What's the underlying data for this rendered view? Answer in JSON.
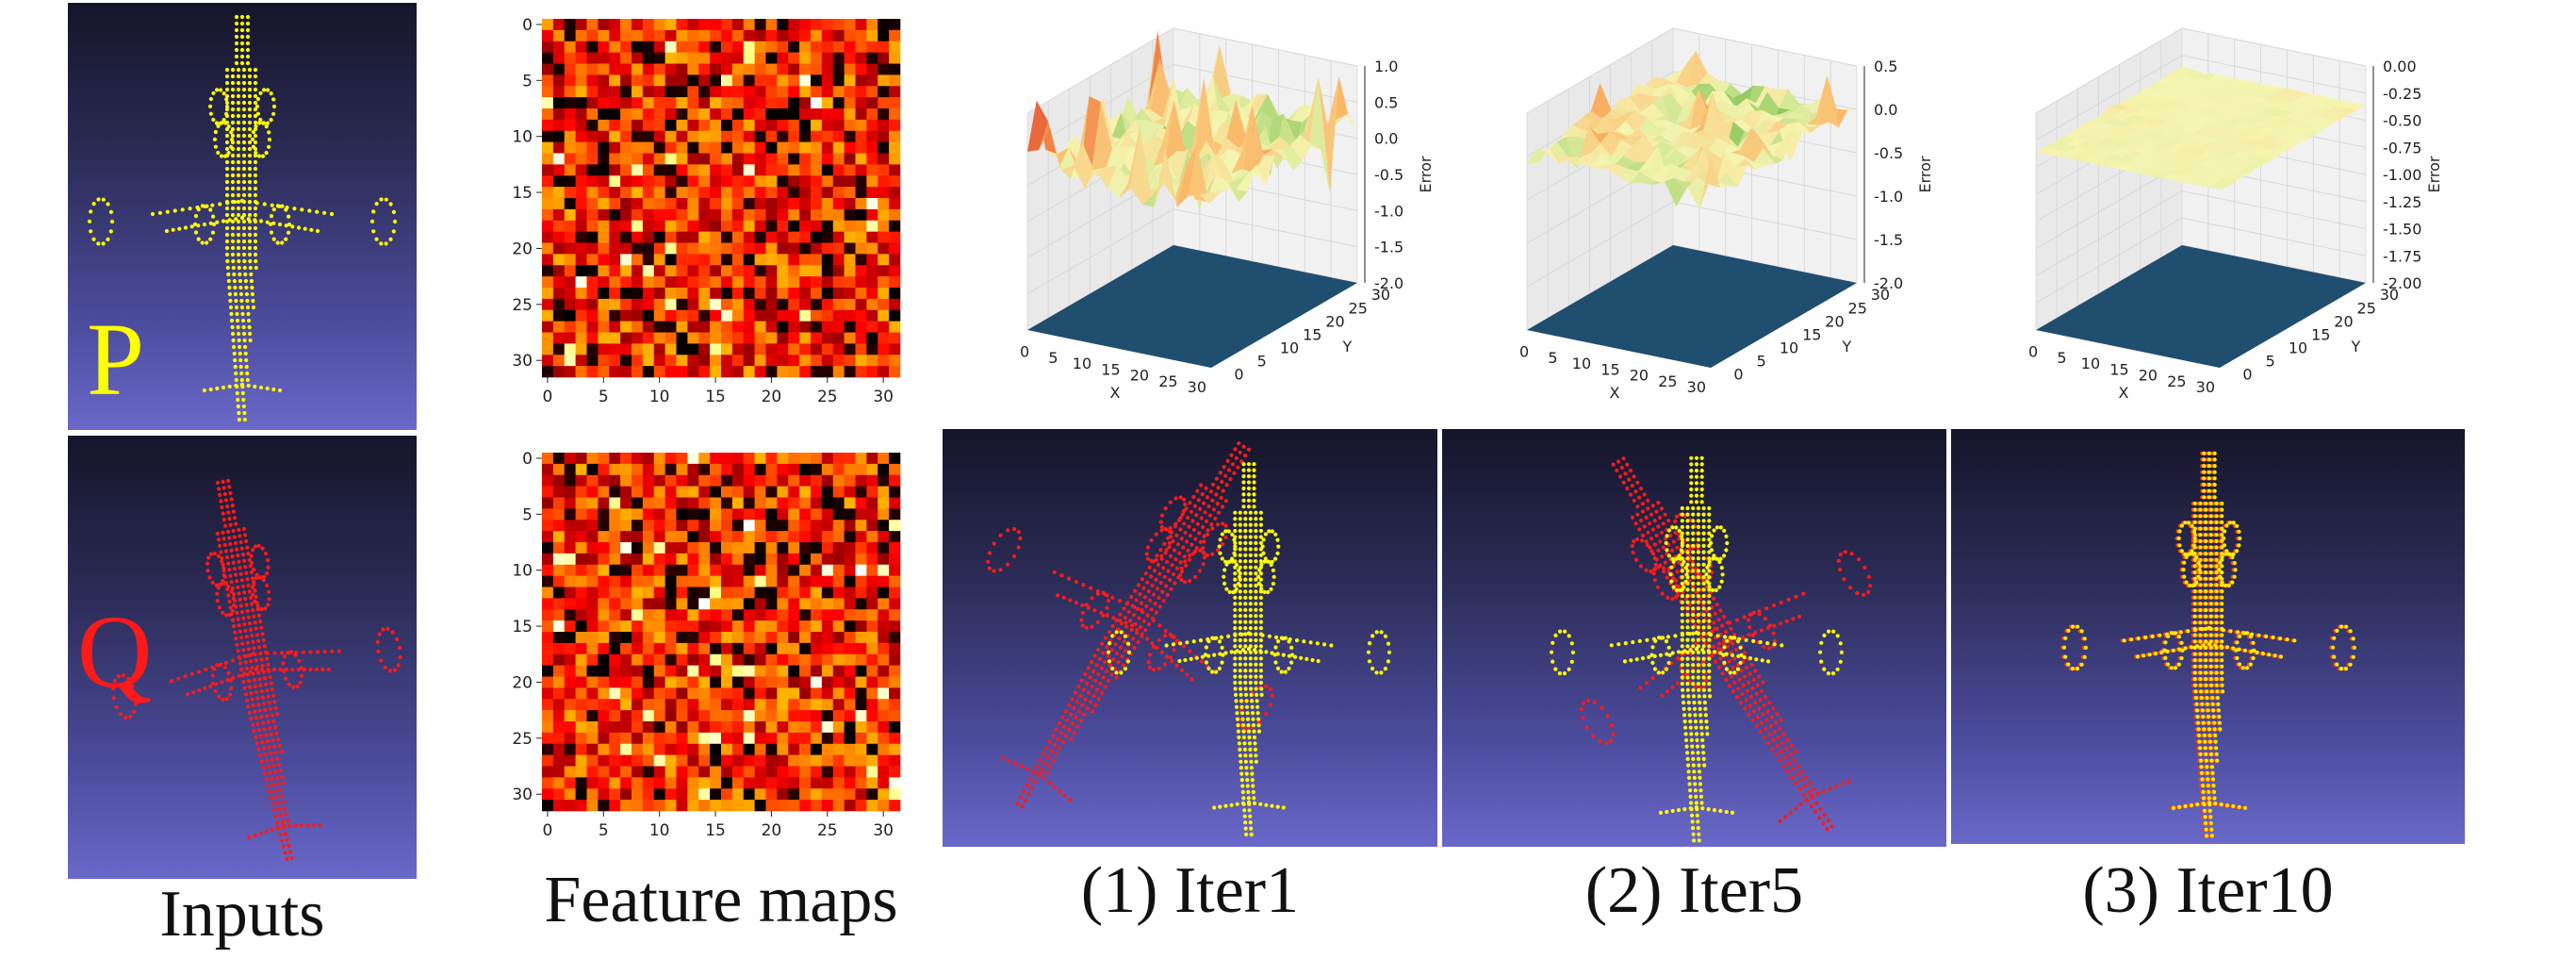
{
  "labels": {
    "p": "P",
    "q": "Q"
  },
  "captions": {
    "inputs": "Inputs",
    "feature_maps": "Feature maps",
    "iter1": "(1) Iter1",
    "iter5": "(2) Iter5",
    "iter10": "(3) Iter10"
  },
  "heatmap_ticks": [
    "0",
    "5",
    "10",
    "15",
    "20",
    "25",
    "30"
  ],
  "plot_axes": {
    "x_label": "X",
    "y_label": "Y",
    "z_label": "Error",
    "xy_ticks": [
      "0",
      "5",
      "10",
      "15",
      "20",
      "25",
      "30"
    ]
  },
  "surface_plots": [
    {
      "z_ticks": [
        "1.0",
        "0.5",
        "0.0",
        "-0.5",
        "-1.0",
        "-1.5",
        "-2.0"
      ]
    },
    {
      "z_ticks": [
        "0.5",
        "0.0",
        "-0.5",
        "-1.0",
        "-1.5",
        "-2.0"
      ]
    },
    {
      "z_ticks": [
        "0.00",
        "-0.25",
        "-0.50",
        "-0.75",
        "-1.00",
        "-1.25",
        "-1.50",
        "-1.75",
        "-2.00"
      ]
    }
  ],
  "colors": {
    "p_points": "#ffff00",
    "q_points": "#ff1a1a",
    "base_plane": "#1f4e6e"
  }
}
